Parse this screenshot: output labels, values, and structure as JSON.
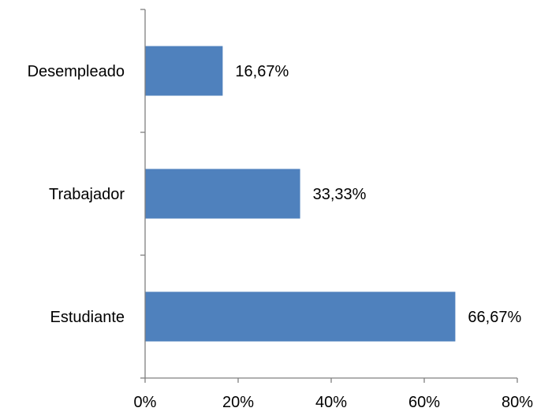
{
  "chart_data": {
    "type": "bar",
    "orientation": "horizontal",
    "categories": [
      "Desempleado",
      "Trabajador",
      "Estudiante"
    ],
    "values": [
      16.67,
      33.33,
      66.67
    ],
    "value_labels": [
      "16,67%",
      "33,33%",
      "66,67%"
    ],
    "xlim": [
      0,
      80
    ],
    "xticks": [
      0,
      20,
      40,
      60,
      80
    ],
    "xtick_labels": [
      "0%",
      "20%",
      "40%",
      "60%",
      "80%"
    ],
    "title": "",
    "xlabel": "",
    "ylabel": "",
    "grid": false,
    "legend": "none",
    "bar_color": "#4F81BD"
  }
}
